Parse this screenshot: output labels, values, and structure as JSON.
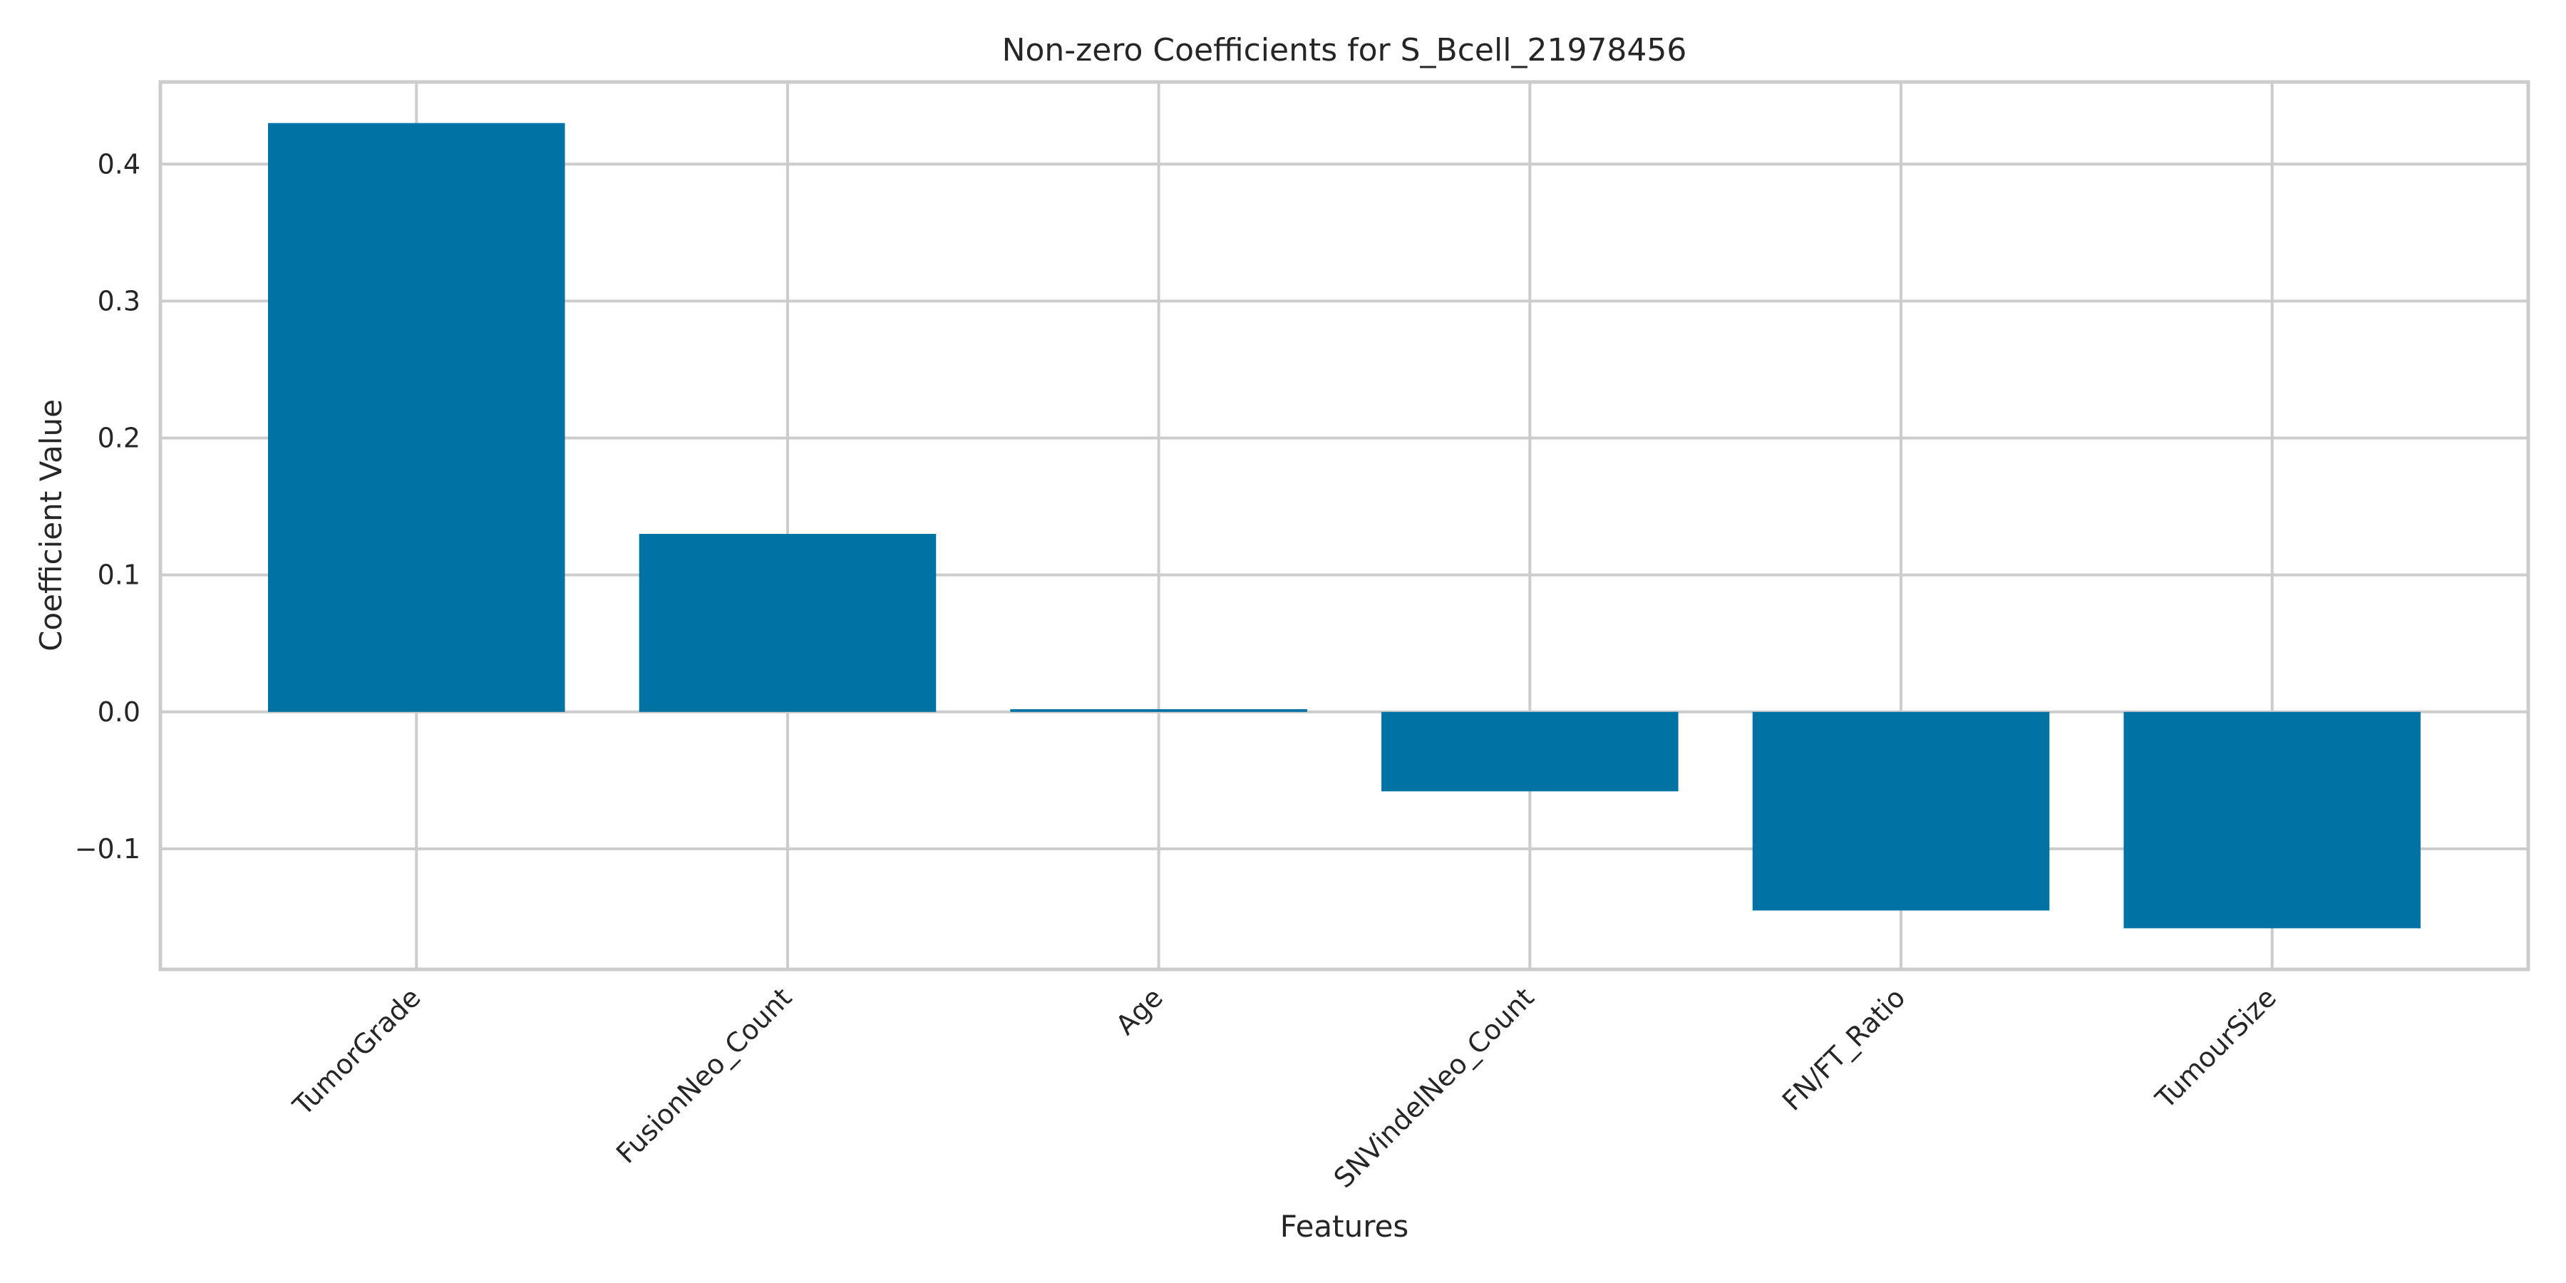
{
  "chart_data": {
    "type": "bar",
    "title": "Non-zero Coefficients for S_Bcell_21978456",
    "xlabel": "Features",
    "ylabel": "Coefficient Value",
    "categories": [
      "TumorGrade",
      "FusionNeo_Count",
      "Age",
      "SNVindelNeo_Count",
      "FN/FT_Ratio",
      "TumourSize"
    ],
    "values": [
      0.43,
      0.13,
      0.002,
      -0.058,
      -0.145,
      -0.158
    ],
    "ylim": [
      -0.188,
      0.46
    ],
    "yticks": [
      0.4,
      0.3,
      0.2,
      0.1,
      0.0,
      -0.1
    ],
    "ytick_labels": [
      "0.4",
      "0.3",
      "0.2",
      "0.1",
      "0.0",
      "−0.1"
    ],
    "grid": true,
    "bar_color": "#0072a3"
  }
}
